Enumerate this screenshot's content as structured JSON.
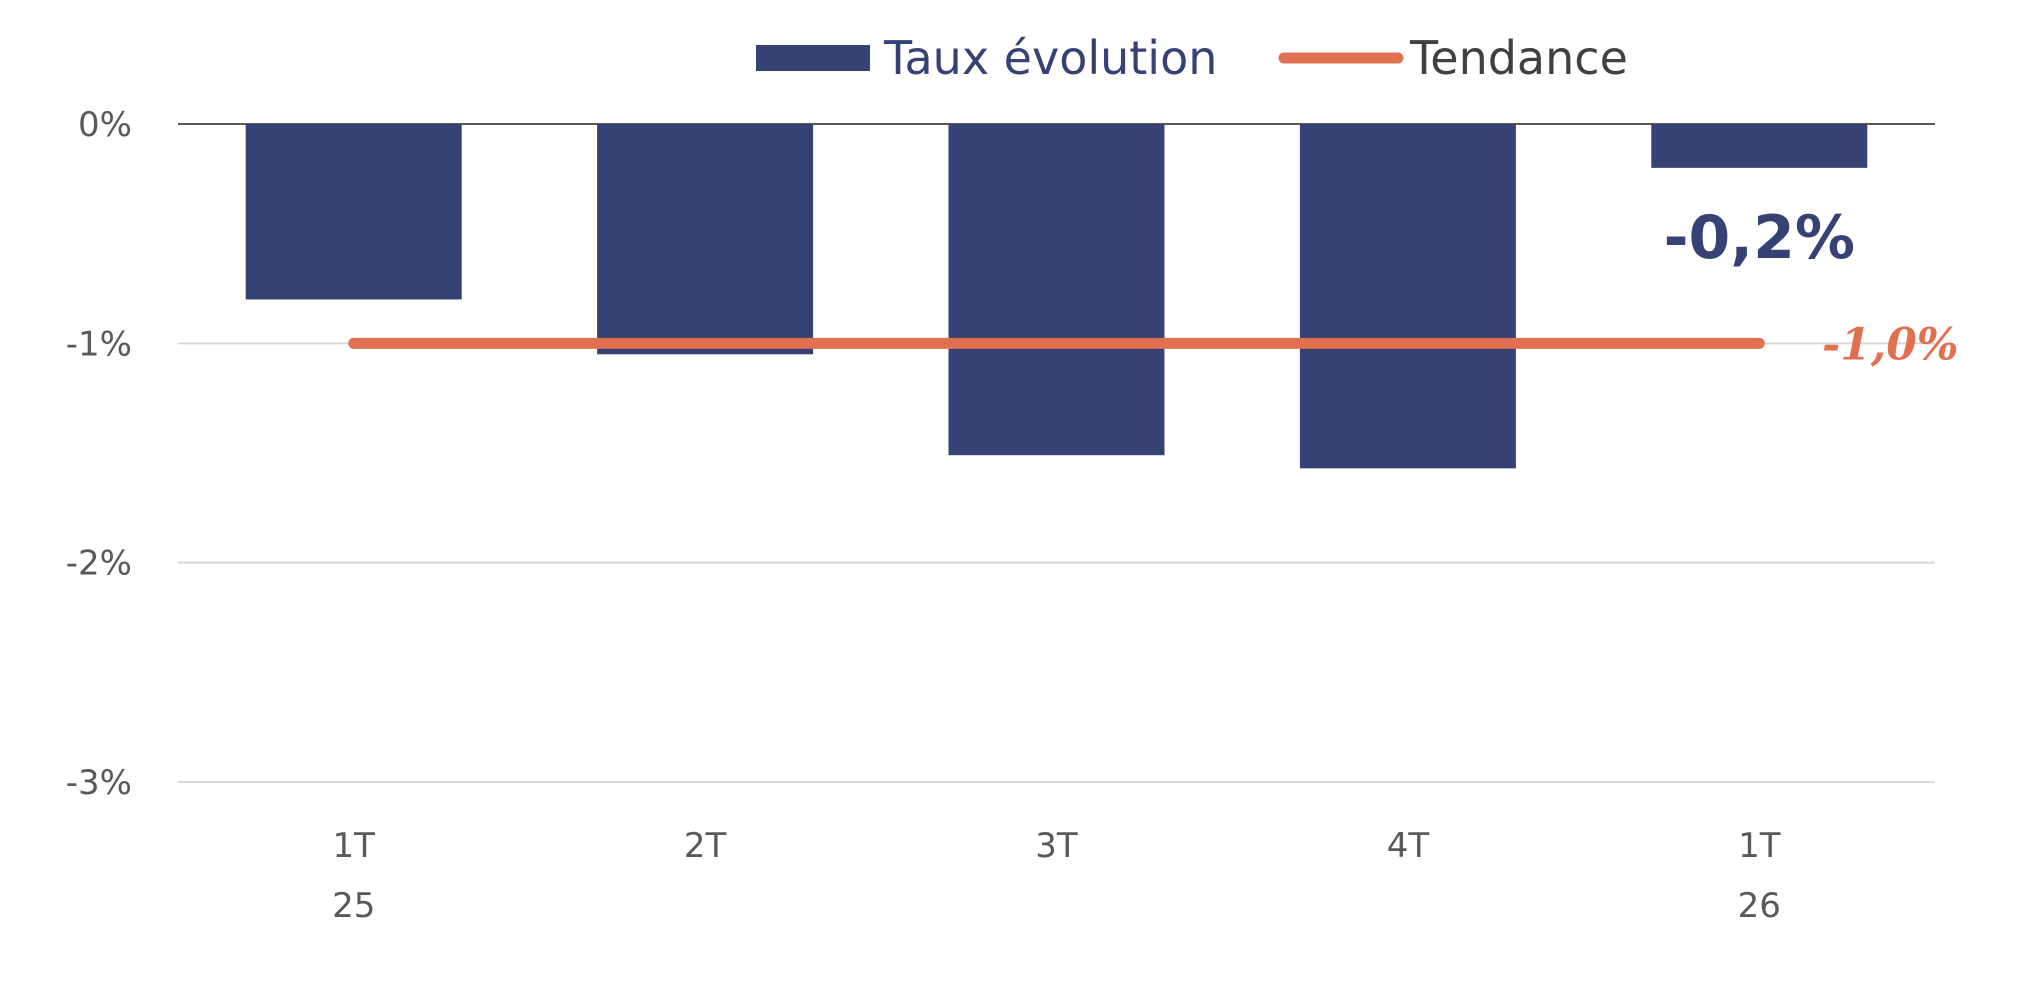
{
  "chart_data": {
    "type": "bar",
    "categories": [
      [
        "1T",
        "25"
      ],
      [
        "2T"
      ],
      [
        "3T"
      ],
      [
        "4T"
      ],
      [
        "1T",
        "26"
      ]
    ],
    "series": [
      {
        "name": "Taux évolution",
        "kind": "bar",
        "color": "#364273",
        "values": [
          -0.8,
          -1.05,
          -1.51,
          -1.57,
          -0.2
        ]
      },
      {
        "name": "Tendance",
        "kind": "line",
        "color": "#E07050",
        "values": [
          -1.0,
          -1.0,
          -1.0,
          -1.0,
          -1.0
        ]
      }
    ],
    "data_labels": {
      "bar_last": "-0,2%",
      "trend_last": "-1,0%"
    },
    "y_ticks": [
      {
        "value": 0,
        "label": "0%"
      },
      {
        "value": -1,
        "label": "-1%"
      },
      {
        "value": -2,
        "label": "-2%"
      },
      {
        "value": -3,
        "label": "-3%"
      }
    ],
    "ylim": [
      -3,
      0
    ],
    "grid": true,
    "legend_position": "top-center"
  }
}
